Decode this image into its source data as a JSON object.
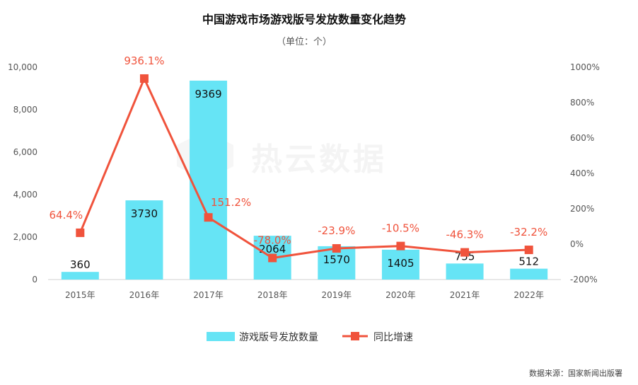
{
  "colors": {
    "bar": "#66e4f5",
    "line": "#f0533c",
    "text": "#111111",
    "axis": "#555555"
  },
  "watermark": "热云数据",
  "source": "数据来源：国家新闻出版署",
  "chart_data": {
    "type": "bar",
    "title": "中国游戏市场游戏版号发放数量变化趋势",
    "subtitle": "（单位：个）",
    "categories": [
      "2015年",
      "2016年",
      "2017年",
      "2018年",
      "2019年",
      "2020年",
      "2021年",
      "2022年"
    ],
    "series": [
      {
        "name": "游戏版号发放数量",
        "type": "bar",
        "axis": "left",
        "values": [
          360,
          3730,
          9369,
          2064,
          1570,
          1405,
          755,
          512
        ],
        "labels": [
          "360",
          "3730",
          "9369",
          "2064",
          "1570",
          "1405",
          "755",
          "512"
        ]
      },
      {
        "name": "同比增速",
        "type": "line",
        "axis": "right",
        "values": [
          64.4,
          936.1,
          151.2,
          -78.0,
          -23.9,
          -10.5,
          -46.3,
          -32.2
        ],
        "labels": [
          "64.4%",
          "936.1%",
          "151.2%",
          "-78.0%",
          "-23.9%",
          "-10.5%",
          "-46.3%",
          "-32.2%"
        ]
      }
    ],
    "y_left": {
      "min": 0,
      "max": 10000,
      "ticks": [
        0,
        2000,
        4000,
        6000,
        8000,
        10000
      ],
      "tick_labels": [
        "0",
        "2,000",
        "4,000",
        "6,000",
        "8,000",
        "10,000"
      ]
    },
    "y_right": {
      "min": -200,
      "max": 1000,
      "ticks": [
        -200,
        0,
        200,
        400,
        600,
        800,
        1000
      ],
      "tick_labels": [
        "-200%",
        "0%",
        "200%",
        "400%",
        "600%",
        "800%",
        "1000%"
      ]
    },
    "grid": false,
    "legend_position": "bottom"
  }
}
